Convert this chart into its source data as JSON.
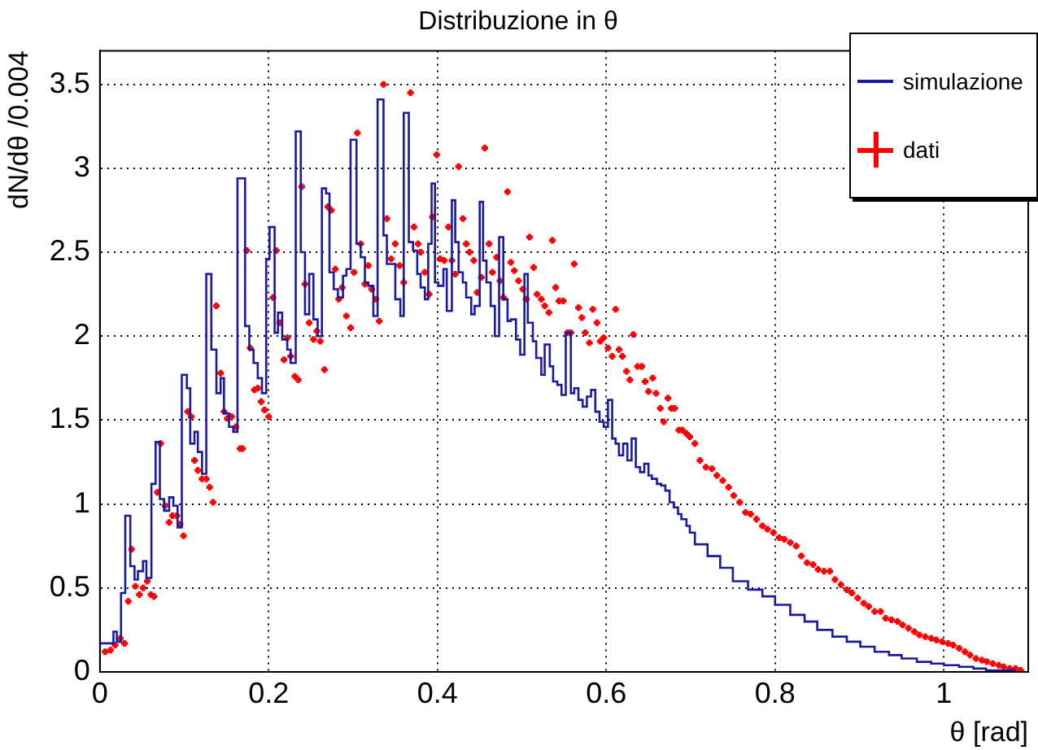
{
  "chart_data": {
    "type": "step",
    "title": "Distribuzione in θ",
    "xlabel": "θ [rad]",
    "ylabel": "dN/dθ /0.004",
    "xlim": [
      0,
      1.1
    ],
    "xticks": [
      0,
      0.2,
      0.4,
      0.6,
      0.8,
      1
    ],
    "ylim": [
      0,
      3.7
    ],
    "yticks": [
      0,
      0.5,
      1,
      1.5,
      2,
      2.5,
      3,
      3.5
    ],
    "grid": true,
    "legend": "top right",
    "series": [
      {
        "name": "simulazione",
        "color": "#1a1aa0",
        "x": [
          0,
          0.016,
          0.02,
          0.025,
          0.03,
          0.036,
          0.041,
          0.045,
          0.051,
          0.055,
          0.061,
          0.066,
          0.071,
          0.076,
          0.082,
          0.087,
          0.092,
          0.097,
          0.103,
          0.107,
          0.112,
          0.116,
          0.121,
          0.126,
          0.132,
          0.138,
          0.143,
          0.147,
          0.153,
          0.158,
          0.163,
          0.172,
          0.177,
          0.182,
          0.187,
          0.192,
          0.197,
          0.201,
          0.207,
          0.211,
          0.216,
          0.222,
          0.226,
          0.232,
          0.238,
          0.243,
          0.248,
          0.253,
          0.258,
          0.263,
          0.268,
          0.272,
          0.277,
          0.282,
          0.288,
          0.292,
          0.297,
          0.304,
          0.309,
          0.314,
          0.318,
          0.324,
          0.329,
          0.336,
          0.34,
          0.345,
          0.35,
          0.356,
          0.36,
          0.366,
          0.371,
          0.376,
          0.38,
          0.385,
          0.389,
          0.393,
          0.397,
          0.401,
          0.407,
          0.411,
          0.417,
          0.421,
          0.425,
          0.43,
          0.434,
          0.44,
          0.444,
          0.45,
          0.454,
          0.458,
          0.463,
          0.468,
          0.473,
          0.478,
          0.483,
          0.487,
          0.493,
          0.498,
          0.503,
          0.507,
          0.513,
          0.517,
          0.523,
          0.527,
          0.533,
          0.537,
          0.542,
          0.547,
          0.552,
          0.558,
          0.562,
          0.567,
          0.572,
          0.577,
          0.582,
          0.587,
          0.592,
          0.597,
          0.602,
          0.607,
          0.611,
          0.615,
          0.62,
          0.625,
          0.63,
          0.635,
          0.64,
          0.645,
          0.65,
          0.654,
          0.66,
          0.665,
          0.67,
          0.675,
          0.68,
          0.685,
          0.689,
          0.695,
          0.699,
          0.705,
          0.72,
          0.735,
          0.75,
          0.768,
          0.785,
          0.8,
          0.818,
          0.835,
          0.85,
          0.868,
          0.885,
          0.901,
          0.918,
          0.935,
          0.95,
          0.968,
          0.985,
          1,
          1.018,
          1.035,
          1.05,
          1.068,
          1.085
        ],
        "values": [
          0.13,
          0.17,
          0.24,
          0.18,
          0.47,
          0.93,
          0.63,
          0.55,
          0.6,
          0.66,
          0.56,
          1.12,
          1.37,
          1.03,
          0.96,
          1.04,
          0.99,
          0.86,
          1.77,
          1.69,
          1.36,
          1.43,
          1.31,
          1.18,
          2.37,
          1.92,
          1.66,
          1.75,
          1.54,
          1.46,
          1.43,
          2.94,
          2.06,
          1.92,
          1.84,
          1.75,
          1.66,
          2.46,
          2.65,
          2.02,
          2.14,
          1.98,
          1.92,
          1.84,
          3.22,
          2.5,
          2.13,
          2.37,
          2.1,
          2,
          2.88,
          2.85,
          2.38,
          2.28,
          2.23,
          2.36,
          2.4,
          3.17,
          2.55,
          2.47,
          2.32,
          2.3,
          2.12,
          3.41,
          2.6,
          2.43,
          2.43,
          2.22,
          2.12,
          3.33,
          2.56,
          2.51,
          2.37,
          2.29,
          2.22,
          2.55,
          2.91,
          2.32,
          2.3,
          2.4,
          2.15,
          2.81,
          2.56,
          2.38,
          2.32,
          2.23,
          2.13,
          2.18,
          2.8,
          2.45,
          2.32,
          2.18,
          2,
          2.59,
          2.22,
          2.09,
          2.1,
          1.98,
          1.89,
          2.37,
          2.08,
          1.97,
          1.87,
          1.77,
          1.95,
          1.82,
          1.73,
          1.71,
          1.65,
          2.02,
          1.66,
          1.69,
          1.62,
          1.58,
          1.64,
          1.68,
          1.55,
          1.49,
          1.46,
          1.62,
          1.39,
          1.36,
          1.29,
          1.36,
          1.26,
          1.39,
          1.22,
          1.19,
          1.24,
          1.17,
          1.15,
          1.12,
          1.11,
          1.08,
          1.01,
          0.98,
          0.94,
          0.91,
          0.87,
          0.83,
          0.76,
          0.69,
          0.62,
          0.54,
          0.49,
          0.45,
          0.4,
          0.34,
          0.3,
          0.25,
          0.21,
          0.18,
          0.15,
          0.12,
          0.1,
          0.08,
          0.06,
          0.05,
          0.04,
          0.03,
          0.02,
          0.01,
          0.01
        ]
      },
      {
        "name": "dati",
        "type": "scatter",
        "color": "#ff0000",
        "marker": "cross",
        "x": [
          0.006,
          0.0125,
          0.018,
          0.024,
          0.029,
          0.0336,
          0.0375,
          0.042,
          0.0467,
          0.0513,
          0.056,
          0.0605,
          0.064,
          0.068,
          0.072,
          0.077,
          0.082,
          0.086,
          0.091,
          0.095,
          0.099,
          0.104,
          0.108,
          0.112,
          0.116,
          0.121,
          0.126,
          0.13,
          0.134,
          0.138,
          0.143,
          0.147,
          0.151,
          0.156,
          0.161,
          0.166,
          0.169,
          0.174,
          0.178,
          0.183,
          0.187,
          0.191,
          0.195,
          0.2,
          0.205,
          0.209,
          0.213,
          0.218,
          0.222,
          0.226,
          0.231,
          0.235,
          0.239,
          0.243,
          0.248,
          0.253,
          0.257,
          0.261,
          0.266,
          0.27,
          0.274,
          0.279,
          0.283,
          0.287,
          0.292,
          0.297,
          0.301,
          0.305,
          0.309,
          0.314,
          0.318,
          0.322,
          0.327,
          0.331,
          0.336,
          0.34,
          0.345,
          0.35,
          0.355,
          0.36,
          0.368,
          0.372,
          0.377,
          0.38,
          0.385,
          0.39,
          0.394,
          0.399,
          0.403,
          0.408,
          0.413,
          0.417,
          0.421,
          0.425,
          0.43,
          0.434,
          0.438,
          0.443,
          0.447,
          0.452,
          0.456,
          0.461,
          0.465,
          0.47,
          0.474,
          0.478,
          0.483,
          0.487,
          0.491,
          0.496,
          0.501,
          0.505,
          0.509,
          0.514,
          0.518,
          0.523,
          0.527,
          0.532,
          0.536,
          0.54,
          0.544,
          0.549,
          0.554,
          0.558,
          0.562,
          0.567,
          0.571,
          0.575,
          0.58,
          0.584,
          0.589,
          0.593,
          0.597,
          0.602,
          0.607,
          0.611,
          0.615,
          0.619,
          0.624,
          0.628,
          0.632,
          0.637,
          0.642,
          0.646,
          0.65,
          0.655,
          0.659,
          0.664,
          0.668,
          0.673,
          0.677,
          0.681,
          0.686,
          0.69,
          0.695,
          0.699,
          0.705,
          0.711,
          0.718,
          0.725,
          0.731,
          0.738,
          0.745,
          0.751,
          0.758,
          0.765,
          0.771,
          0.778,
          0.785,
          0.791,
          0.798,
          0.805,
          0.811,
          0.818,
          0.825,
          0.831,
          0.838,
          0.845,
          0.851,
          0.858,
          0.865,
          0.871,
          0.878,
          0.885,
          0.891,
          0.898,
          0.905,
          0.911,
          0.918,
          0.925,
          0.931,
          0.938,
          0.945,
          0.951,
          0.958,
          0.965,
          0.971,
          0.978,
          0.985,
          0.991,
          0.998,
          1.005,
          1.011,
          1.018,
          1.025,
          1.031,
          1.038,
          1.045,
          1.051,
          1.058,
          1.065,
          1.071,
          1.078,
          1.085,
          1.091
        ],
        "values": [
          0.12,
          0.13,
          0.16,
          0.2,
          0.17,
          0.42,
          0.73,
          0.51,
          0.46,
          0.5,
          0.54,
          0.46,
          0.45,
          1.07,
          1.36,
          0.99,
          0.89,
          0.93,
          0.93,
          0.88,
          0.81,
          1.55,
          1.52,
          1.26,
          1.2,
          1.15,
          1.15,
          1.1,
          1.01,
          2.18,
          1.78,
          1.55,
          1.51,
          1.52,
          1.46,
          1.33,
          1.33,
          2.51,
          1.93,
          1.68,
          1.69,
          1.61,
          1.56,
          1.52,
          2.23,
          2.51,
          2.08,
          1.86,
          1.99,
          1.88,
          1.76,
          1.74,
          2.89,
          2.31,
          2.08,
          1.98,
          2.03,
          1.97,
          1.8,
          2.77,
          2.75,
          2.4,
          2.22,
          2.29,
          2.12,
          2.05,
          2.38,
          3.21,
          2.55,
          2.31,
          2.42,
          2.28,
          2.22,
          2.09,
          3.5,
          2.7,
          2.46,
          2.55,
          2.42,
          2.32,
          3.45,
          2.65,
          2.55,
          2.5,
          2.38,
          2.25,
          2.71,
          3.08,
          2.46,
          2.45,
          2.65,
          2.45,
          2.37,
          3.01,
          2.7,
          2.55,
          2.5,
          2.45,
          2.26,
          2.35,
          3.12,
          2.55,
          2.38,
          2.47,
          2.33,
          2.23,
          2.86,
          2.44,
          2.39,
          2.33,
          2.28,
          2.22,
          2.59,
          2.41,
          2.25,
          2.22,
          2.18,
          2.14,
          2.57,
          2.29,
          2.21,
          2.21,
          2.02,
          2.02,
          2.43,
          2.17,
          2.11,
          2.02,
          1.96,
          2.16,
          2.08,
          1.97,
          1.99,
          1.93,
          1.88,
          2.16,
          1.92,
          1.88,
          1.79,
          1.74,
          2.01,
          1.82,
          1.82,
          1.73,
          1.67,
          1.75,
          1.66,
          1.57,
          1.49,
          1.63,
          1.57,
          1.57,
          1.44,
          1.44,
          1.42,
          1.4,
          1.36,
          1.26,
          1.22,
          1.21,
          1.17,
          1.14,
          1.1,
          1.05,
          1.01,
          0.95,
          0.94,
          0.91,
          0.87,
          0.85,
          0.83,
          0.8,
          0.79,
          0.77,
          0.75,
          0.69,
          0.65,
          0.64,
          0.61,
          0.6,
          0.6,
          0.55,
          0.52,
          0.49,
          0.47,
          0.44,
          0.41,
          0.39,
          0.36,
          0.36,
          0.32,
          0.31,
          0.3,
          0.28,
          0.26,
          0.24,
          0.22,
          0.21,
          0.2,
          0.19,
          0.18,
          0.17,
          0.16,
          0.14,
          0.12,
          0.1,
          0.08,
          0.07,
          0.06,
          0.05,
          0.04,
          0.03,
          0.02,
          0.02,
          0.01
        ]
      }
    ]
  }
}
